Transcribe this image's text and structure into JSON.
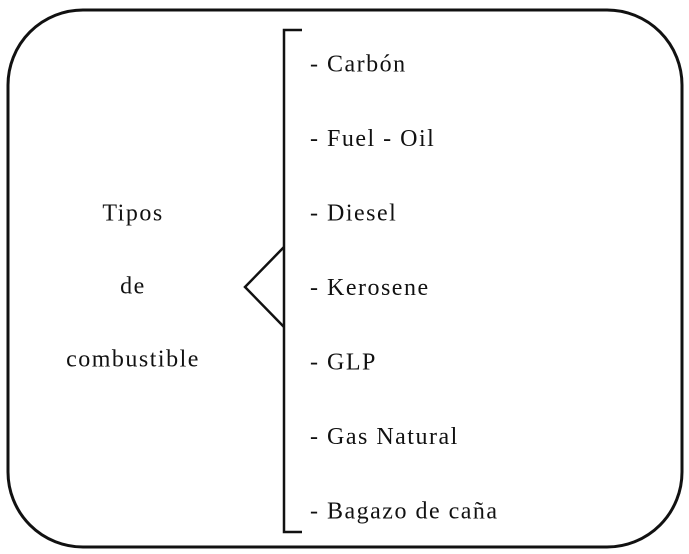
{
  "label": [
    "Tipos",
    "de",
    "combustible"
  ],
  "items": [
    "- Carbón",
    "- Fuel - Oil",
    "- Diesel",
    "- Kerosene",
    "- GLP",
    "- Gas Natural",
    "- Bagazo de caña"
  ]
}
